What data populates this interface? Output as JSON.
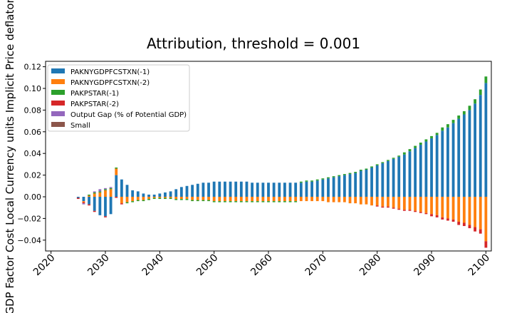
{
  "chart_data": {
    "type": "bar",
    "subtype": "stacked-diverging",
    "title": "Attribution, threshold = 0.001",
    "xlabel": "",
    "ylabel": "GDP Factor Cost Local Currency units Implicit Price deflator",
    "xlim": [
      2019,
      2101
    ],
    "ylim": [
      -0.05,
      0.125
    ],
    "xticks": [
      2020,
      2030,
      2040,
      2050,
      2060,
      2070,
      2080,
      2090,
      2100
    ],
    "yticks": [
      -0.04,
      -0.02,
      0.0,
      0.02,
      0.04,
      0.06,
      0.08,
      0.1,
      0.12
    ],
    "ytick_labels": [
      "−0.04",
      "−0.02",
      "0.00",
      "0.02",
      "0.04",
      "0.06",
      "0.08",
      "0.10",
      "0.12"
    ],
    "legend_position": "upper-left",
    "grid": false,
    "x": [
      2025,
      2026,
      2027,
      2028,
      2029,
      2030,
      2031,
      2032,
      2033,
      2034,
      2035,
      2036,
      2037,
      2038,
      2039,
      2040,
      2041,
      2042,
      2043,
      2044,
      2045,
      2046,
      2047,
      2048,
      2049,
      2050,
      2051,
      2052,
      2053,
      2054,
      2055,
      2056,
      2057,
      2058,
      2059,
      2060,
      2061,
      2062,
      2063,
      2064,
      2065,
      2066,
      2067,
      2068,
      2069,
      2070,
      2071,
      2072,
      2073,
      2074,
      2075,
      2076,
      2077,
      2078,
      2079,
      2080,
      2081,
      2082,
      2083,
      2084,
      2085,
      2086,
      2087,
      2088,
      2089,
      2090,
      2091,
      2092,
      2093,
      2094,
      2095,
      2096,
      2097,
      2098,
      2099,
      2100
    ],
    "series": [
      {
        "name": "PAKNYGDPFCSTXN(-1)",
        "color": "#1f77b4",
        "values": [
          -0.001,
          -0.004,
          -0.007,
          -0.013,
          -0.017,
          -0.018,
          -0.016,
          0.02,
          0.016,
          0.011,
          0.006,
          0.005,
          0.003,
          0.002,
          0.002,
          0.003,
          0.004,
          0.005,
          0.007,
          0.009,
          0.01,
          0.011,
          0.012,
          0.013,
          0.013,
          0.014,
          0.014,
          0.014,
          0.014,
          0.014,
          0.014,
          0.014,
          0.013,
          0.013,
          0.013,
          0.013,
          0.013,
          0.013,
          0.013,
          0.013,
          0.013,
          0.013,
          0.014,
          0.014,
          0.015,
          0.016,
          0.017,
          0.018,
          0.019,
          0.02,
          0.021,
          0.022,
          0.024,
          0.025,
          0.027,
          0.029,
          0.031,
          0.033,
          0.035,
          0.037,
          0.039,
          0.042,
          0.045,
          0.048,
          0.051,
          0.054,
          0.057,
          0.061,
          0.064,
          0.068,
          0.072,
          0.076,
          0.08,
          0.086,
          0.094,
          0.105
        ]
      },
      {
        "name": "PAKNYGDPFCSTXN(-2)",
        "color": "#ff7f0e",
        "values": [
          0.0,
          -0.001,
          0.001,
          0.003,
          0.004,
          0.006,
          0.007,
          0.006,
          -0.006,
          -0.005,
          -0.004,
          -0.003,
          -0.003,
          -0.002,
          -0.001,
          -0.001,
          -0.001,
          -0.001,
          -0.002,
          -0.002,
          -0.002,
          -0.003,
          -0.003,
          -0.003,
          -0.003,
          -0.004,
          -0.004,
          -0.004,
          -0.004,
          -0.004,
          -0.004,
          -0.004,
          -0.004,
          -0.004,
          -0.004,
          -0.004,
          -0.004,
          -0.004,
          -0.004,
          -0.004,
          -0.004,
          -0.004,
          -0.004,
          -0.004,
          -0.004,
          -0.004,
          -0.005,
          -0.005,
          -0.005,
          -0.005,
          -0.006,
          -0.006,
          -0.007,
          -0.007,
          -0.008,
          -0.008,
          -0.009,
          -0.009,
          -0.01,
          -0.011,
          -0.012,
          -0.012,
          -0.013,
          -0.014,
          -0.015,
          -0.016,
          -0.017,
          -0.019,
          -0.02,
          -0.021,
          -0.023,
          -0.024,
          -0.026,
          -0.028,
          -0.03,
          -0.041
        ]
      },
      {
        "name": "PAKPSTAR(-1)",
        "color": "#2ca02c",
        "values": [
          0.0,
          0.0,
          0.001,
          0.001,
          0.001,
          0.001,
          0.001,
          0.001,
          0.0,
          -0.001,
          -0.001,
          -0.001,
          -0.001,
          -0.001,
          -0.001,
          -0.001,
          -0.001,
          -0.001,
          -0.001,
          -0.001,
          -0.001,
          -0.001,
          -0.001,
          -0.001,
          -0.001,
          -0.001,
          -0.001,
          -0.001,
          -0.001,
          -0.001,
          -0.001,
          -0.001,
          -0.001,
          -0.001,
          -0.001,
          -0.001,
          -0.001,
          -0.001,
          -0.001,
          -0.001,
          -0.001,
          0.001,
          0.001,
          0.001,
          0.001,
          0.001,
          0.001,
          0.001,
          0.001,
          0.001,
          0.001,
          0.001,
          0.001,
          0.001,
          0.001,
          0.001,
          0.001,
          0.001,
          0.001,
          0.001,
          0.002,
          0.002,
          0.002,
          0.002,
          0.002,
          0.002,
          0.002,
          0.003,
          0.003,
          0.003,
          0.003,
          0.003,
          0.004,
          0.004,
          0.005,
          0.006
        ]
      },
      {
        "name": "PAKPSTAR(-2)",
        "color": "#d62728",
        "values": [
          -0.001,
          -0.001,
          -0.001,
          -0.001,
          0.0,
          -0.001,
          0.0,
          -0.001,
          -0.001,
          0.0,
          0.0,
          0.0,
          0.0,
          0.0,
          0.0,
          0.0,
          0.0,
          0.0,
          0.0,
          0.0,
          0.0,
          0.0,
          0.0,
          0.0,
          0.0,
          0.0,
          0.0,
          0.0,
          0.0,
          0.0,
          0.0,
          0.0,
          0.0,
          0.0,
          0.0,
          0.0,
          0.0,
          0.0,
          0.0,
          0.0,
          0.0,
          0.0,
          0.0,
          0.0,
          0.0,
          0.0,
          0.0,
          0.0,
          0.0,
          0.0,
          0.0,
          0.0,
          0.0,
          0.0,
          0.0,
          -0.001,
          -0.001,
          -0.001,
          -0.001,
          -0.001,
          -0.001,
          -0.001,
          -0.001,
          -0.001,
          -0.001,
          -0.002,
          -0.002,
          -0.002,
          -0.002,
          -0.002,
          -0.003,
          -0.003,
          -0.003,
          -0.004,
          -0.004,
          -0.006
        ]
      },
      {
        "name": "Output Gap (% of Potential GDP)",
        "color": "#9467bd",
        "values": [
          0.0,
          -0.001,
          0.0,
          0.001,
          0.002,
          0.001,
          0.001,
          0.0,
          0.0,
          0.0,
          0.0,
          0.0,
          0.0,
          0.0,
          0.0,
          0.0,
          0.0,
          0.0,
          0.0,
          0.0,
          0.0,
          0.0,
          0.0,
          0.0,
          0.0,
          0.0,
          0.0,
          0.0,
          0.0,
          0.0,
          0.0,
          0.0,
          0.0,
          0.0,
          0.0,
          0.0,
          0.0,
          0.0,
          0.0,
          0.0,
          0.0,
          0.0,
          0.0,
          0.0,
          0.0,
          0.0,
          0.0,
          0.0,
          0.0,
          0.0,
          0.0,
          0.0,
          0.0,
          0.0,
          0.0,
          0.0,
          0.0,
          0.0,
          0.0,
          0.0,
          0.0,
          0.0,
          0.0,
          0.0,
          0.0,
          0.0,
          0.0,
          0.0,
          0.0,
          0.0,
          0.0,
          0.0,
          0.0,
          0.0,
          0.0,
          0.0
        ]
      },
      {
        "name": "Small",
        "color": "#8c564b",
        "values": [
          0.0,
          0.0,
          0.0,
          0.0,
          0.0,
          0.0,
          0.0,
          0.0,
          0.0,
          0.0,
          0.0,
          0.0,
          0.0,
          0.0,
          0.0,
          0.0,
          0.0,
          0.0,
          0.0,
          0.0,
          0.0,
          0.0,
          0.0,
          0.0,
          0.0,
          0.0,
          0.0,
          0.0,
          0.0,
          0.0,
          0.0,
          0.0,
          0.0,
          0.0,
          0.0,
          0.0,
          0.0,
          0.0,
          0.0,
          0.0,
          0.0,
          0.0,
          0.0,
          0.0,
          0.0,
          0.0,
          0.0,
          0.0,
          0.0,
          0.0,
          0.0,
          0.0,
          0.0,
          0.0,
          0.0,
          0.0,
          0.0,
          0.0,
          0.0,
          0.0,
          0.0,
          0.0,
          0.0,
          0.0,
          0.0,
          0.0,
          0.0,
          0.0,
          0.0,
          0.0,
          0.0,
          0.0,
          0.0,
          0.0,
          0.0,
          0.0
        ]
      }
    ]
  }
}
